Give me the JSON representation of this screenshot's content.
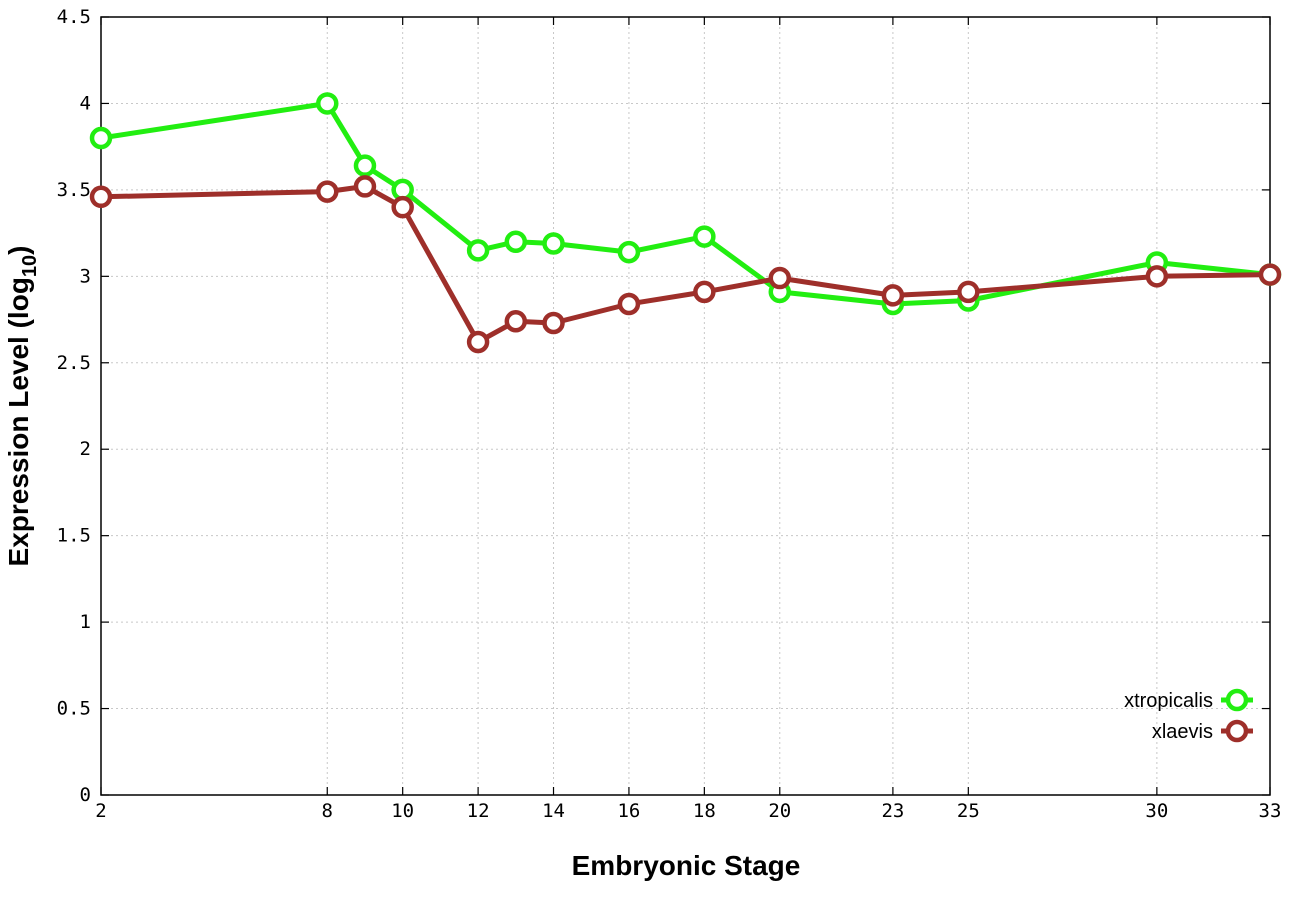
{
  "chart_data": {
    "type": "line",
    "xlabel": "Embryonic Stage",
    "ylabel_main": "Expression Level (log",
    "ylabel_sub": "10",
    "ylabel_close": ")",
    "x": [
      2,
      8,
      9,
      10,
      12,
      13,
      14,
      16,
      18,
      20,
      23,
      25,
      30,
      33
    ],
    "x_ticks": [
      "2",
      "8",
      "10",
      "12",
      "14",
      "16",
      "18",
      "20",
      "23",
      "25",
      "30",
      "33"
    ],
    "y_ticks": [
      "0",
      "0.5",
      "1",
      "1.5",
      "2",
      "2.5",
      "3",
      "3.5",
      "4",
      "4.5"
    ],
    "xlim": [
      2,
      33
    ],
    "ylim": [
      0,
      4.5
    ],
    "grid": true,
    "legend_position": "bottom-right",
    "series": [
      {
        "name": "xtropicalis",
        "color": "#22ee11",
        "values": [
          3.8,
          4.0,
          3.64,
          3.5,
          3.15,
          3.2,
          3.19,
          3.14,
          3.23,
          2.91,
          2.84,
          2.86,
          3.08,
          3.01
        ]
      },
      {
        "name": "xlaevis",
        "color": "#9e2f2a",
        "values": [
          3.46,
          3.49,
          3.52,
          3.4,
          2.62,
          2.74,
          2.73,
          2.84,
          2.91,
          2.99,
          2.89,
          2.91,
          3.0,
          3.01
        ]
      }
    ]
  }
}
